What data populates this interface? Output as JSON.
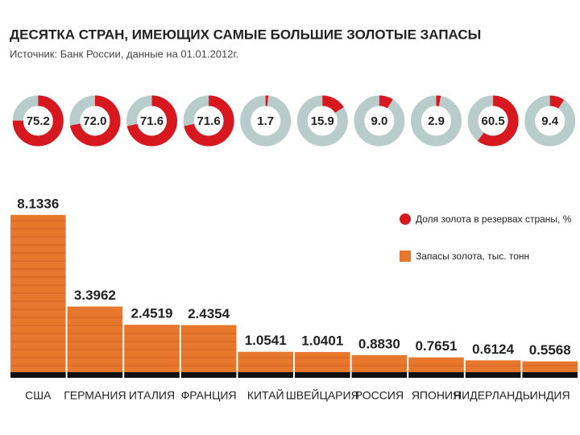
{
  "title": "ДЕСЯТКА СТРАН, ИМЕЮЩИХ САМЫЕ БОЛЬШИЕ ЗОЛОТЫЕ ЗАПАСЫ",
  "subtitle": "Источник: Банк России, данные на 01.01.2012г.",
  "chart_data": [
    {
      "type": "donut",
      "series": [
        {
          "name": "Доля золота в резервах страны, %",
          "color": "#d7191f",
          "values": [
            75.2,
            72.0,
            71.6,
            71.6,
            1.7,
            15.9,
            9.0,
            2.9,
            60.5,
            9.4
          ],
          "value_labels": [
            "75.2",
            "72.0",
            "71.6",
            "71.6",
            "1.7",
            "15.9",
            "9.0",
            "2.9",
            "60.5",
            "9.4"
          ]
        }
      ]
    },
    {
      "type": "bar",
      "categories": [
        "США",
        "ГЕРМАНИЯ",
        "ИТАЛИЯ",
        "ФРАНЦИЯ",
        "КИТАЙ",
        "ШВЕЙЦАРИЯ",
        "РОССИЯ",
        "ЯПОНИЯ",
        "НИДЕРЛАНДЫ",
        "ИНДИЯ"
      ],
      "series": [
        {
          "name": "Запасы золота, тыс. тонн",
          "color": "#e8772e",
          "values": [
            8.1336,
            3.3962,
            2.4519,
            2.4354,
            1.0541,
            1.0401,
            0.883,
            0.7651,
            0.6124,
            0.5568
          ],
          "value_labels": [
            "8.1336",
            "3.3962",
            "2.4519",
            "2.4354",
            "1.0541",
            "1.0401",
            "0.8830",
            "0.7651",
            "0.6124",
            "0.5568"
          ]
        }
      ]
    }
  ]
}
